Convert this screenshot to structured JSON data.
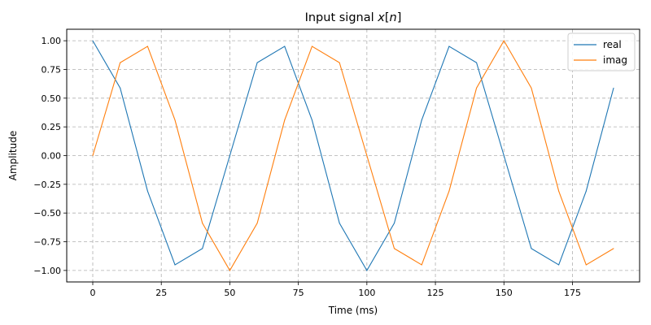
{
  "chart_data": {
    "type": "line",
    "title": "Input signal x[n]",
    "title_parts": [
      "Input signal ",
      "x",
      "[",
      "n",
      "]"
    ],
    "xlabel": "Time (ms)",
    "ylabel": "Amplitude",
    "xlim": [
      -9.5,
      199.5
    ],
    "ylim": [
      -1.1,
      1.1
    ],
    "xticks": [
      0,
      25,
      50,
      75,
      100,
      125,
      150,
      175
    ],
    "xtick_labels": [
      "0",
      "25",
      "50",
      "75",
      "100",
      "125",
      "150",
      "175"
    ],
    "yticks": [
      1.0,
      0.75,
      0.5,
      0.25,
      0.0,
      -0.25,
      -0.5,
      -0.75,
      -1.0
    ],
    "ytick_labels": [
      "1.00",
      "0.75",
      "0.50",
      "0.25",
      "0.00",
      "−0.25",
      "−0.50",
      "−0.75",
      "−1.00"
    ],
    "grid": true,
    "legend_position": "top-right",
    "x": [
      0,
      10,
      20,
      30,
      40,
      50,
      60,
      70,
      80,
      90,
      100,
      110,
      120,
      130,
      140,
      150,
      160,
      170,
      180,
      190
    ],
    "series": [
      {
        "name": "real",
        "color": "#1f77b4",
        "values": [
          1.0,
          0.588,
          -0.309,
          -0.951,
          -0.809,
          0.0,
          0.809,
          0.951,
          0.309,
          -0.588,
          -1.0,
          -0.588,
          0.309,
          0.951,
          0.809,
          0.0,
          -0.809,
          -0.951,
          -0.309,
          0.588
        ]
      },
      {
        "name": "imag",
        "color": "#ff7f0e",
        "values": [
          0.0,
          0.809,
          0.951,
          0.309,
          -0.588,
          -1.0,
          -0.588,
          0.309,
          0.951,
          0.809,
          0.0,
          -0.809,
          -0.951,
          -0.309,
          0.588,
          1.0,
          0.588,
          -0.309,
          -0.951,
          -0.809
        ]
      }
    ]
  }
}
